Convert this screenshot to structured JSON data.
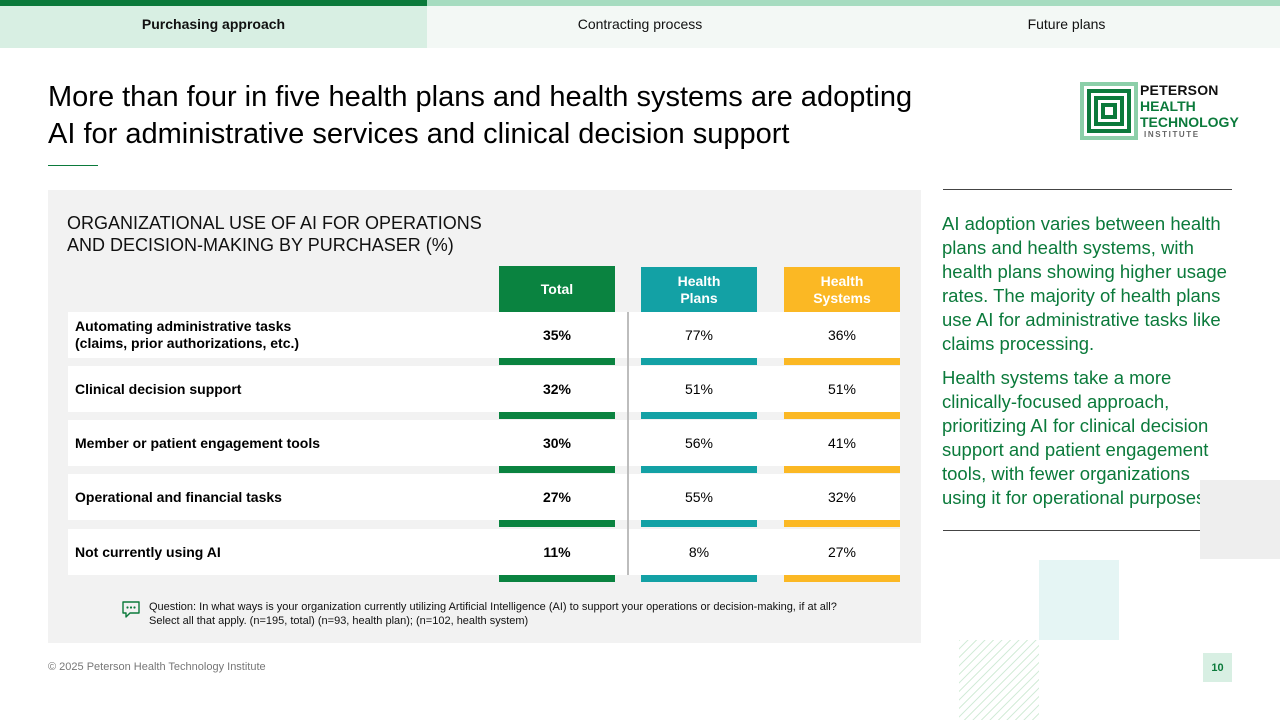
{
  "tabs": [
    {
      "label": "Purchasing approach",
      "active": true
    },
    {
      "label": "Contracting process",
      "active": false
    },
    {
      "label": "Future plans",
      "active": false
    }
  ],
  "title": "More than four in five health plans and health systems are adopting AI for administrative services and clinical decision support",
  "logo": {
    "line1": "PETERSON",
    "line2": "HEALTH",
    "line3": "TECHNOLOGY",
    "line4": "INSTITUTE",
    "icon": "peterson-logo-mark"
  },
  "chart": {
    "title_line1": "ORGANIZATIONAL USE OF AI FOR OPERATIONS",
    "title_line2": "AND DECISION-MAKING BY PURCHASER (%)",
    "columns": {
      "total": "Total",
      "plans": "Health Plans",
      "systems": "Health Systems"
    },
    "colors": {
      "total": "#0a8340",
      "plans": "#13a1a5",
      "systems": "#fbb824"
    },
    "rows": [
      {
        "label_line1": "Automating administrative tasks",
        "label_line2": "(claims, prior authorizations, etc.)",
        "total": "35%",
        "plans": "77%",
        "systems": "36%"
      },
      {
        "label_line1": "Clinical decision support",
        "label_line2": "",
        "total": "32%",
        "plans": "51%",
        "systems": "51%"
      },
      {
        "label_line1": "Member or patient engagement tools",
        "label_line2": "",
        "total": "30%",
        "plans": "56%",
        "systems": "41%"
      },
      {
        "label_line1": "Operational and financial tasks",
        "label_line2": "",
        "total": "27%",
        "plans": "55%",
        "systems": "32%"
      },
      {
        "label_line1": "Not currently using AI",
        "label_line2": "",
        "total": "11%",
        "plans": "8%",
        "systems": "27%"
      }
    ],
    "note_icon": "comment-icon",
    "note_line1": "Question: In what ways is your organization currently utilizing Artificial Intelligence (AI) to support your operations or decision-making, if at all?",
    "note_line2": "Select all that apply. (n=195, total) (n=93, health plan); (n=102, health system)"
  },
  "side": {
    "p1": "AI adoption varies between health plans and health systems, with health plans showing higher usage rates. The majority of health plans use AI for administrative tasks like claims processing.",
    "p2": "Health systems take a more clinically-focused approach, prioritizing AI for clinical decision support and patient engagement tools, with fewer organizations using it for operational purposes."
  },
  "footer": "© 2025 Peterson Health Technology Institute",
  "page_number": "10"
}
